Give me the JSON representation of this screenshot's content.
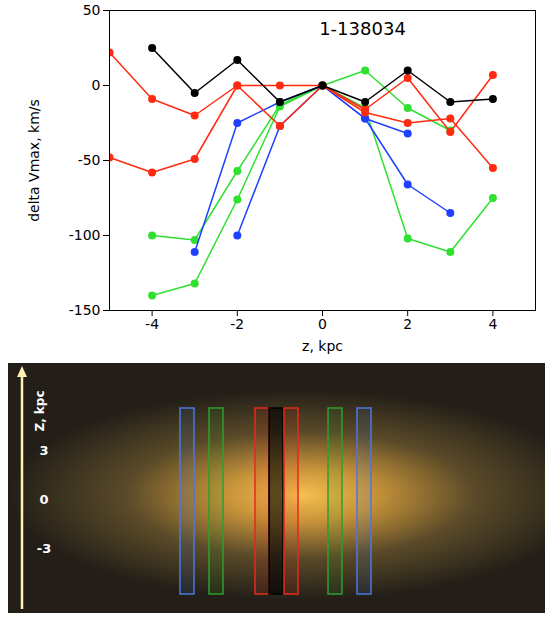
{
  "chart_data": {
    "type": "line",
    "title": "1-138034",
    "x_label": "z, kpc",
    "y_label": "delta Vmax, km/s",
    "x": [
      -5,
      -4,
      -3,
      -2,
      -1,
      0,
      1,
      2,
      3,
      4
    ],
    "series": [
      {
        "color": "#000000",
        "marker": "circle",
        "values": [
          null,
          25,
          -5,
          17,
          -11,
          0,
          -11,
          10,
          -11,
          -9
        ]
      },
      {
        "color": "#ff2a10",
        "marker": "circle",
        "values": [
          22,
          -9,
          -20,
          0,
          0,
          0,
          -16,
          5,
          -31,
          7
        ]
      },
      {
        "color": "#ff2a10",
        "marker": "circle",
        "values": [
          -48,
          -58,
          -49,
          0,
          -27,
          0,
          -18,
          -25,
          -22,
          -55
        ]
      },
      {
        "color": "#2040ff",
        "marker": "circle",
        "values": [
          null,
          null,
          -111,
          -25,
          -11,
          0,
          -22,
          -66,
          -85,
          null
        ]
      },
      {
        "color": "#2040ff",
        "marker": "circle",
        "values": [
          null,
          null,
          null,
          -100,
          -27,
          0,
          -22,
          -32,
          null,
          null
        ]
      },
      {
        "color": "#30e030",
        "marker": "circle",
        "values": [
          null,
          -100,
          -103,
          -57,
          -13,
          0,
          10,
          -15,
          -30,
          null
        ]
      },
      {
        "color": "#30e030",
        "marker": "circle",
        "values": [
          null,
          -140,
          -132,
          -76,
          -14,
          0,
          -15,
          -102,
          -111,
          -75
        ]
      }
    ],
    "xlim": [
      -5,
      5
    ],
    "ylim": [
      -150,
      50
    ],
    "xticks": [
      -4,
      -2,
      0,
      2,
      4
    ],
    "yticks": [
      -150,
      -100,
      -50,
      0,
      50
    ],
    "grid": false
  },
  "image": {
    "axis_label": "Z, kpc",
    "ticks": [
      3,
      0,
      -3
    ],
    "slit_colors": [
      "#4a78e0",
      "#2ca02c",
      "#e8281c",
      "#000000",
      "#e8281c",
      "#2ca02c",
      "#4a78e0"
    ]
  }
}
